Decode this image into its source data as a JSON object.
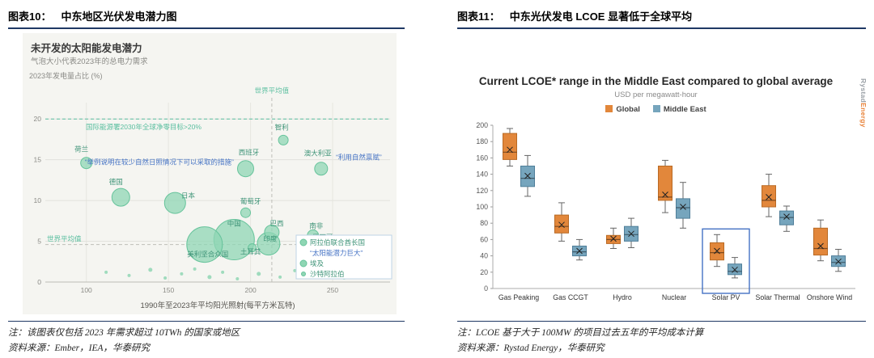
{
  "left": {
    "header_label": "图表10：",
    "header_title": "中东地区光伏发电潜力图",
    "note": "注：该图表仅包括 2023 年需求超过 10TWh 的国家或地区",
    "source": "资料来源：Ember，IEA，华泰研究"
  },
  "right": {
    "header_label": "图表11：",
    "header_title": "中东光伏发电 LCOE 显著低于全球平均",
    "note": "注：LCOE 基于大于 100MW 的项目过去五年的平均成本计算",
    "source": "资料来源：Rystad Energy，华泰研究",
    "watermark": {
      "part1": "Rystad",
      "part2": "Energy"
    }
  },
  "chart_data": [
    {
      "type": "scatter",
      "title": "未开发的太阳能发电潜力",
      "subtitle": "气泡大小代表2023年的总电力需求",
      "ylabel": "2023年发电量占比 (%)",
      "xlabel": "1990年至2023年平均阳光照射(每平方米瓦特)",
      "xlim": [
        75,
        285
      ],
      "ylim": [
        0,
        22
      ],
      "xticks": [
        100,
        150,
        200,
        250
      ],
      "yticks": [
        0,
        5,
        10,
        15,
        20
      ],
      "grid": true,
      "colors": {
        "bubble": "#8FD6B4",
        "bubble_stroke": "#66C39B",
        "label": "#3F9478",
        "annotation": "#4472C4",
        "teal_text": "#5BBFA0",
        "panel_bg": "#F5F5F1"
      },
      "target_line": {
        "y": 20,
        "label": "国际能源署2030年全球净零目标>20%"
      },
      "world_avg": {
        "x": 213,
        "y": 4.6,
        "x_label": "世界平均值",
        "y_label": "世界平均值"
      },
      "annotations": [
        {
          "text": "“举例说明在较少自然日照情况下可以采取的措施”",
          "x": 99,
          "y": 14.4
        },
        {
          "text": "“利用自然禀赋”",
          "x": 252,
          "y": 15.0
        }
      ],
      "bubbles": [
        {
          "name": "荷兰",
          "x": 100,
          "y": 14.6,
          "r": 7,
          "lx": 97,
          "ly": 16.0
        },
        {
          "name": "德国",
          "x": 121,
          "y": 10.4,
          "r": 11,
          "lx": 118,
          "ly": 12.0
        },
        {
          "name": "日本",
          "x": 154,
          "y": 9.7,
          "r": 13,
          "lx": 162,
          "ly": 10.3
        },
        {
          "name": "西班牙",
          "x": 197,
          "y": 13.9,
          "r": 10,
          "lx": 199,
          "ly": 15.6
        },
        {
          "name": "智利",
          "x": 220,
          "y": 17.4,
          "r": 6,
          "lx": 219,
          "ly": 18.7
        },
        {
          "name": "澳大利亚",
          "x": 243,
          "y": 13.9,
          "r": 8,
          "lx": 241,
          "ly": 15.5
        },
        {
          "name": "葡萄牙",
          "x": 197,
          "y": 8.5,
          "r": 6,
          "lx": 200,
          "ly": 9.6
        },
        {
          "name": "中国",
          "x": 190,
          "y": 5.2,
          "r": 25,
          "lx": 190,
          "ly": 6.9
        },
        {
          "name": "巴西",
          "x": 213,
          "y": 6.1,
          "r": 9,
          "lx": 216,
          "ly": 6.9
        },
        {
          "name": "南非",
          "x": 238,
          "y": 5.7,
          "r": 7,
          "lx": 240,
          "ly": 6.6
        },
        {
          "name": "印度",
          "x": 211,
          "y": 4.7,
          "r": 14,
          "lx": 212,
          "ly": 5.0
        },
        {
          "name": "墨西哥",
          "x": 241,
          "y": 4.6,
          "r": 8,
          "lx": 244,
          "ly": 5.2
        },
        {
          "name": "土耳其",
          "x": 201,
          "y": 4.2,
          "r": 5,
          "lx": 200,
          "ly": 3.4
        },
        {
          "name": "美利坚合众国",
          "x": 172,
          "y": 4.6,
          "r": 22,
          "lx": 174,
          "ly": 3.1
        }
      ],
      "small_dots": [
        [
          112,
          1.2,
          2
        ],
        [
          126,
          0.8,
          2
        ],
        [
          139,
          1.5,
          2.5
        ],
        [
          148,
          0.5,
          2
        ],
        [
          158,
          1.0,
          2
        ],
        [
          166,
          1.6,
          2
        ],
        [
          175,
          0.6,
          2.5
        ],
        [
          183,
          1.2,
          2
        ],
        [
          192,
          0.4,
          2
        ],
        [
          205,
          1.0,
          2.5
        ],
        [
          218,
          0.6,
          2
        ],
        [
          227,
          1.4,
          2
        ],
        [
          236,
          0.8,
          2
        ],
        [
          249,
          1.1,
          2
        ],
        [
          257,
          0.5,
          2
        ],
        [
          230,
          2.6,
          3
        ]
      ],
      "legend_box": {
        "items": [
          {
            "label": "阿拉伯联合酋长国",
            "dot": 4
          },
          {
            "label": "埃及",
            "dot": 4
          },
          {
            "label": "沙特阿拉伯",
            "dot": 2.5
          }
        ],
        "callout": "“太阳能潜力巨大”"
      }
    },
    {
      "type": "boxplot",
      "title": "Current LCOE* range in the Middle East compared to global average",
      "subtitle": "USD per megawatt-hour",
      "categories": [
        "Gas Peaking",
        "Gas CCGT",
        "Hydro",
        "Nuclear",
        "Solar PV",
        "Solar Thermal",
        "Onshore Wind"
      ],
      "ylim": [
        0,
        200
      ],
      "ytick_step": 20,
      "highlight_category": "Solar PV",
      "highlight_color": "#4472C4",
      "series": [
        {
          "name": "Global",
          "color": "#E2873B",
          "stroke": "#B96A24",
          "boxes": [
            [
              150,
              158,
              167,
              190,
              196
            ],
            [
              58,
              68,
              76,
              90,
              105
            ],
            [
              49,
              55,
              60,
              65,
              74
            ],
            [
              93,
              108,
              112,
              150,
              157
            ],
            [
              27,
              35,
              44,
              56,
              66
            ],
            [
              88,
              100,
              108,
              126,
              140
            ],
            [
              34,
              41,
              49,
              74,
              84
            ]
          ],
          "means": [
            170,
            78,
            61,
            115,
            46,
            112,
            52
          ]
        },
        {
          "name": "Middle East",
          "color": "#76A5BD",
          "stroke": "#4F7E99",
          "boxes": [
            [
              113,
              125,
              135,
              150,
              163
            ],
            [
              35,
              40,
              45,
              52,
              60
            ],
            [
              50,
              58,
              66,
              76,
              86
            ],
            [
              74,
              86,
              99,
              110,
              130
            ],
            [
              13,
              17,
              21,
              30,
              38
            ],
            [
              70,
              78,
              87,
              95,
              101
            ],
            [
              21,
              27,
              32,
              40,
              48
            ]
          ],
          "means": [
            138,
            46,
            67,
            100,
            23,
            88,
            33
          ]
        }
      ]
    }
  ]
}
